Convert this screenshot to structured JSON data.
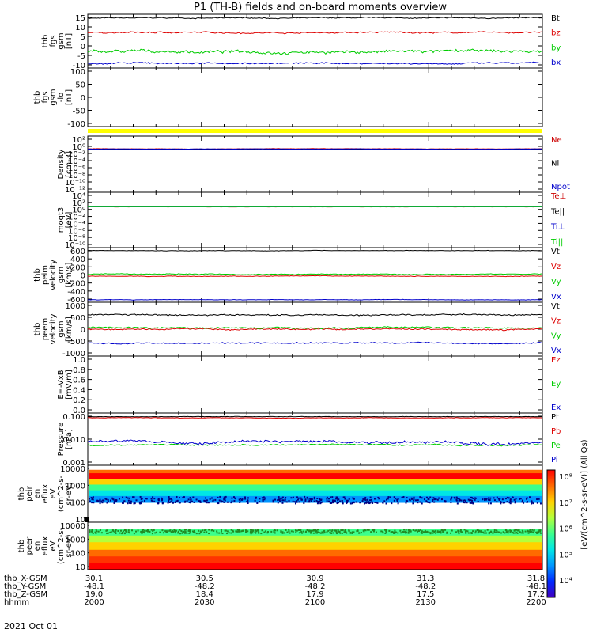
{
  "title": "P1  (TH-B) fields and on-board moments overview",
  "date_label": "2021 Oct 01",
  "colorbar": {
    "label": "[eV/(cm^2-s-sr-eV)] (All Qs)",
    "ticks": [
      "10⁸",
      "10⁷",
      "10⁶",
      "10⁵",
      "10⁴"
    ],
    "colors": [
      "#ff0000",
      "#ff6a00",
      "#ffd200",
      "#b4ff3c",
      "#3cff8c",
      "#00e6e6",
      "#0096ff",
      "#0028ff",
      "#4000c0"
    ]
  },
  "orbit": {
    "row_labels": [
      "thb_X-GSM",
      "thb_Y-GSM",
      "thb_Z-GSM",
      "hhmm"
    ],
    "columns": [
      {
        "x": "30.1",
        "y": "-48.1",
        "z": "19.0",
        "hhmm": "2000"
      },
      {
        "x": "30.5",
        "y": "-48.2",
        "z": "18.4",
        "hhmm": "2030"
      },
      {
        "x": "30.9",
        "y": "-48.2",
        "z": "17.9",
        "hhmm": "2100"
      },
      {
        "x": "31.3",
        "y": "-48.2",
        "z": "17.5",
        "hhmm": "2130"
      },
      {
        "x": "31.8",
        "y": "-48.1",
        "z": "17.2",
        "hhmm": "2200"
      }
    ]
  },
  "chart_data": [
    {
      "type": "line",
      "id": "fgs",
      "ylabel": [
        "thb",
        "fgs",
        "gsm",
        "[nT]"
      ],
      "yticks": [
        "15",
        "10",
        "5",
        "0",
        "-5",
        "-10"
      ],
      "ylim": [
        -12,
        16
      ],
      "series": [
        {
          "name": "Bt",
          "color": "#000000",
          "mean": 14,
          "noise": 0.4
        },
        {
          "name": "bz",
          "color": "#dd0000",
          "mean": 6.5,
          "noise": 0.6
        },
        {
          "name": "by",
          "color": "#00cc00",
          "mean": -3.5,
          "noise": 1.2
        },
        {
          "name": "bx",
          "color": "#0000cc",
          "mean": -9.5,
          "noise": 0.6
        }
      ]
    },
    {
      "type": "line",
      "id": "fgs_lo",
      "ylabel": [
        "thb",
        "fgs",
        "gsm",
        "-lo",
        "[nT]"
      ],
      "yticks": [
        "100",
        "50",
        "0",
        "-50",
        "-100"
      ],
      "ylim": [
        -130,
        100
      ],
      "series": []
    },
    {
      "type": "line",
      "id": "density",
      "scale": "log",
      "ylabel": [
        "Density",
        "[cm-3]"
      ],
      "yticks": [
        "10²",
        "10⁰",
        "10⁻²",
        "10⁻⁴",
        "10⁻⁶",
        "10⁻⁸",
        "10⁻¹⁰",
        "10⁻¹²"
      ],
      "series": [
        {
          "name": "Ne",
          "color": "#cc0000",
          "mean": 0.2,
          "noise": 0.03
        },
        {
          "name": "Ni",
          "color": "#000000",
          "mean": 0.15,
          "noise": 0.03
        },
        {
          "name": "Npot",
          "color": "#0000cc",
          "mean": 0.18,
          "noise": 0.03
        }
      ]
    },
    {
      "type": "line",
      "id": "temp",
      "scale": "log",
      "ylabel": [
        "moqt3",
        "[eV]"
      ],
      "yticks": [
        "10⁴",
        "10²",
        "10⁰",
        "10⁻²",
        "10⁻⁴",
        "10⁻⁶",
        "10⁻⁸",
        "10⁻¹⁰"
      ],
      "series": [
        {
          "name": "Te⊥",
          "color": "#cc0000",
          "mean": 5.2,
          "noise": 0.05
        },
        {
          "name": "Te||",
          "color": "#000000",
          "mean": 5.5,
          "noise": 0.05
        },
        {
          "name": "Ti⊥",
          "color": "#0000cc",
          "mean": 8.5,
          "noise": 0.05
        },
        {
          "name": "Ti||",
          "color": "#00cc00",
          "mean": 8.0,
          "noise": 0.05
        }
      ]
    },
    {
      "type": "line",
      "id": "peim",
      "ylabel": [
        "thb",
        "peim",
        "velocity",
        "gsm",
        "[km/s]"
      ],
      "yticks": [
        "600",
        "400",
        "200",
        "0",
        "-200",
        "-400",
        "-600"
      ],
      "ylim": [
        -650,
        650
      ],
      "series": [
        {
          "name": "Vt",
          "color": "#000000",
          "mean": 580,
          "noise": 8
        },
        {
          "name": "Vz",
          "color": "#dd0000",
          "mean": -30,
          "noise": 10
        },
        {
          "name": "Vy",
          "color": "#00cc00",
          "mean": 20,
          "noise": 15
        },
        {
          "name": "Vx",
          "color": "#0000cc",
          "mean": -590,
          "noise": 8
        }
      ]
    },
    {
      "type": "line",
      "id": "peem",
      "ylabel": [
        "thb",
        "peem",
        "velocity",
        "gsm",
        "[km/s]"
      ],
      "yticks": [
        "1000",
        "500",
        "0",
        "-500",
        "-1000"
      ],
      "ylim": [
        -1050,
        1050
      ],
      "series": [
        {
          "name": "Vt",
          "color": "#000000",
          "mean": 560,
          "noise": 40
        },
        {
          "name": "Vz",
          "color": "#dd0000",
          "mean": 0,
          "noise": 40
        },
        {
          "name": "Vy",
          "color": "#00cc00",
          "mean": 60,
          "noise": 40
        },
        {
          "name": "Vx",
          "color": "#0000cc",
          "mean": -540,
          "noise": 40
        }
      ]
    },
    {
      "type": "line",
      "id": "efield",
      "ylabel": [
        "E=-VxB",
        "[mV/m]"
      ],
      "yticks": [
        "1.0",
        "0.8",
        "0.6",
        "0.4",
        "0.2",
        "0.0"
      ],
      "ylim": [
        0,
        1
      ],
      "series": [
        {
          "name": "Ez",
          "color": "#dd0000"
        },
        {
          "name": "Ey",
          "color": "#00cc00"
        },
        {
          "name": "Ex",
          "color": "#0000cc"
        }
      ]
    },
    {
      "type": "line",
      "id": "pressure",
      "scale": "log",
      "ylabel": [
        "Pressure",
        "[nPa]"
      ],
      "yticks": [
        "0.100",
        "0.010",
        "0.001"
      ],
      "series": [
        {
          "name": "Pt",
          "color": "#000000",
          "mean": 0.095,
          "noise": 0.003
        },
        {
          "name": "Pb",
          "color": "#dd0000",
          "mean": 0.085,
          "noise": 0.003
        },
        {
          "name": "Pe",
          "color": "#00cc00",
          "mean": 0.0055,
          "noise": 0.0006
        },
        {
          "name": "Pi",
          "color": "#0000cc",
          "mean": 0.0075,
          "noise": 0.0015
        }
      ]
    },
    {
      "type": "heatmap",
      "id": "peir",
      "ylabel": [
        "thb",
        "peir",
        "en",
        "eflux",
        "eV",
        "(cm^2-s-",
        "sr-eV)"
      ],
      "yticks": [
        "10000",
        "1000",
        "100",
        "10"
      ]
    },
    {
      "type": "heatmap",
      "id": "peer",
      "ylabel": [
        "thb",
        "peer",
        "en",
        "eflux",
        "eV",
        "(cm^2-s-",
        "sr-eV)"
      ],
      "yticks": [
        "10000",
        "1000",
        "100",
        "10"
      ]
    }
  ]
}
